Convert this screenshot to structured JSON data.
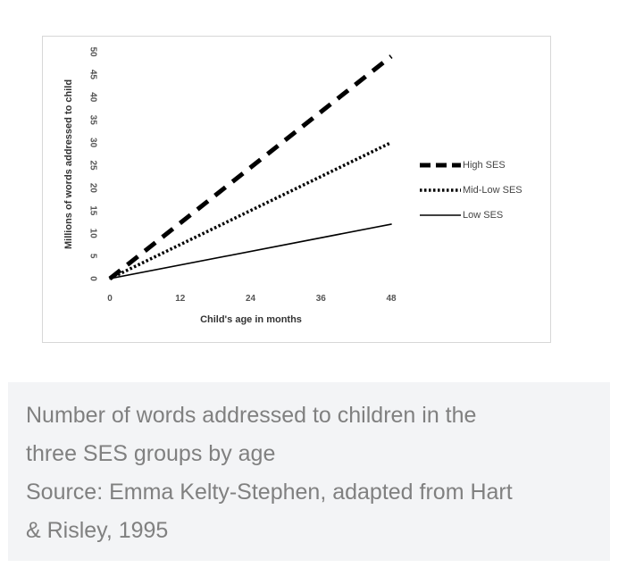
{
  "chart_data": {
    "type": "line",
    "x": [
      0,
      48
    ],
    "series": [
      {
        "name": "High SES",
        "values": [
          0,
          49
        ],
        "style": "dashed",
        "color": "#000000"
      },
      {
        "name": "Mid-Low SES",
        "values": [
          0,
          30
        ],
        "style": "dotted",
        "color": "#000000"
      },
      {
        "name": "Low SES",
        "values": [
          0,
          12
        ],
        "style": "solid",
        "color": "#000000"
      }
    ],
    "xlabel": "Child's age in months",
    "ylabel": "Millions of words addressed to child",
    "xticks": [
      "0",
      "12",
      "24",
      "36",
      "48"
    ],
    "yticks": [
      "0",
      "5",
      "10",
      "15",
      "20",
      "25",
      "30",
      "35",
      "40",
      "45",
      "50"
    ],
    "xlim": [
      0,
      48
    ],
    "ylim": [
      0,
      50
    ],
    "grid": false,
    "legend_position": "right"
  },
  "caption": {
    "line1": "Number of words addressed to children in the",
    "line2": "three SES groups by age",
    "line3": "Source: Emma Kelty-Stephen, adapted from Hart",
    "line4": "& Risley, 1995"
  }
}
